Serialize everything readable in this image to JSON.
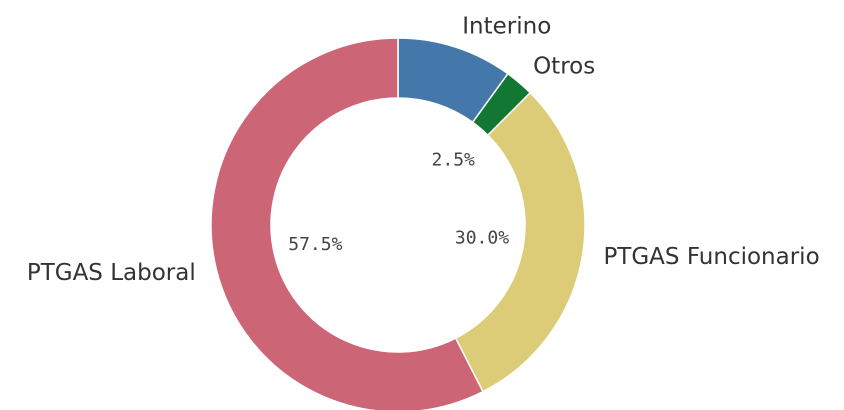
{
  "chart_data": {
    "type": "donut",
    "categories": [
      "Interino",
      "Otros",
      "PTGAS Funcionario",
      "PTGAS Laboral"
    ],
    "values": [
      10,
      2.5,
      30.0,
      57.5
    ],
    "value_labels": [
      null,
      "2.5%",
      "30.0%",
      "57.5%"
    ],
    "colors": [
      "#4477aa",
      "#117733",
      "#ddcc77",
      "#cc6677"
    ]
  }
}
